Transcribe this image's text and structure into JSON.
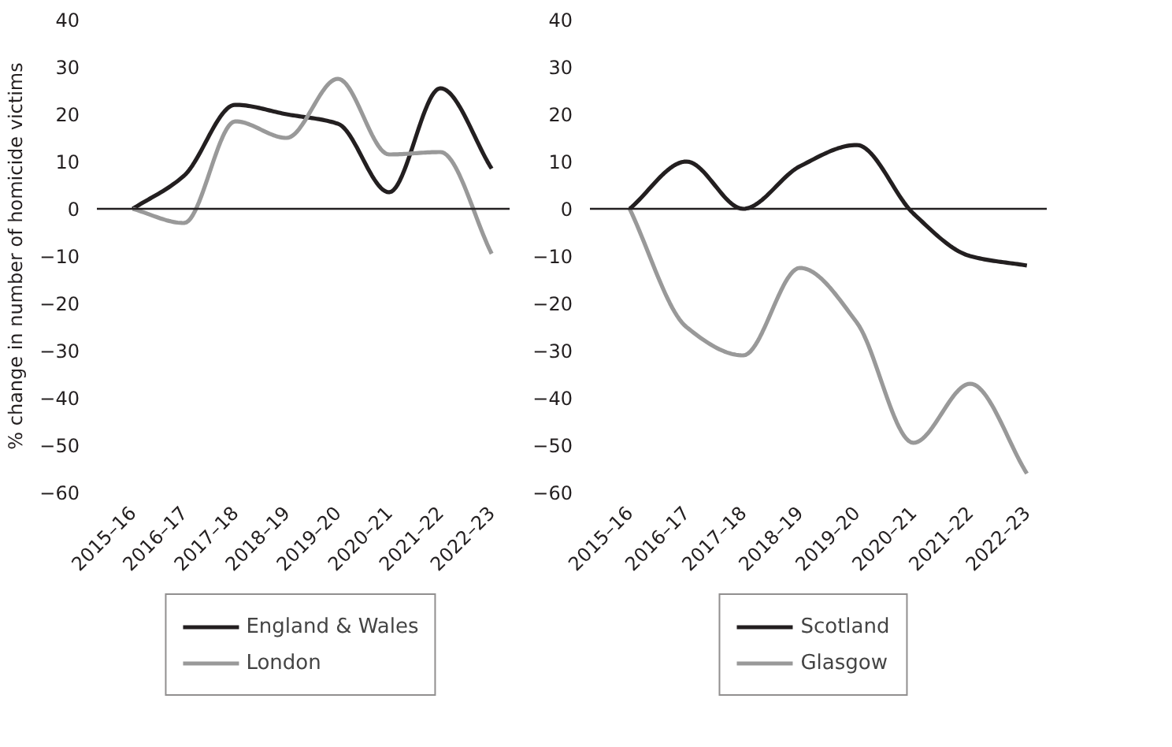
{
  "chart_data": [
    {
      "type": "line",
      "ylabel": "% change in number of homicide victims",
      "categories": [
        "2015–16",
        "2016–17",
        "2017–18",
        "2018–19",
        "2019–20",
        "2020–21",
        "2021–22",
        "2022–23"
      ],
      "ylim": [
        -60,
        40
      ],
      "yticks": [
        {
          "value": -60,
          "label": "−60"
        },
        {
          "value": -50,
          "label": "−50"
        },
        {
          "value": -40,
          "label": "−40"
        },
        {
          "value": -30,
          "label": "−30"
        },
        {
          "value": -20,
          "label": "−20"
        },
        {
          "value": -10,
          "label": "−10"
        },
        0,
        10,
        20,
        30,
        40
      ],
      "grid": false,
      "legend": "bottom",
      "ref_lines": [
        {
          "axis": "y",
          "value": 0,
          "label": null,
          "color": "#231f20"
        }
      ],
      "series": [
        {
          "name": "England & Wales",
          "color": "#231f20",
          "values": [
            0,
            7,
            22,
            20,
            18,
            3.5,
            25.5,
            8.5
          ]
        },
        {
          "name": "London",
          "color": "#999999",
          "values": [
            0,
            -3,
            18.5,
            15,
            27.5,
            11.5,
            12,
            -9.5
          ]
        }
      ]
    },
    {
      "type": "line",
      "categories": [
        "2015–16",
        "2016–17",
        "2017–18",
        "2018–19",
        "2019–20",
        "2020–21",
        "2021–22",
        "2022–23"
      ],
      "ylim": [
        -60,
        40
      ],
      "yticks": [
        {
          "value": -60,
          "label": "−60"
        },
        {
          "value": -50,
          "label": "−50"
        },
        {
          "value": -40,
          "label": "−40"
        },
        {
          "value": -30,
          "label": "−30"
        },
        {
          "value": -20,
          "label": "−20"
        },
        {
          "value": -10,
          "label": "−10"
        },
        0,
        10,
        20,
        30,
        40
      ],
      "grid": false,
      "legend": "bottom",
      "ref_lines": [
        {
          "axis": "y",
          "value": 0,
          "label": null,
          "color": "#231f20"
        }
      ],
      "series": [
        {
          "name": "Scotland",
          "color": "#231f20",
          "values": [
            0,
            10,
            0,
            9,
            13.5,
            -1,
            -10,
            -12
          ]
        },
        {
          "name": "Glasgow",
          "color": "#999999",
          "values": [
            0,
            -25,
            -31,
            -12.5,
            -24,
            -49.5,
            -37,
            -56
          ]
        }
      ]
    }
  ]
}
